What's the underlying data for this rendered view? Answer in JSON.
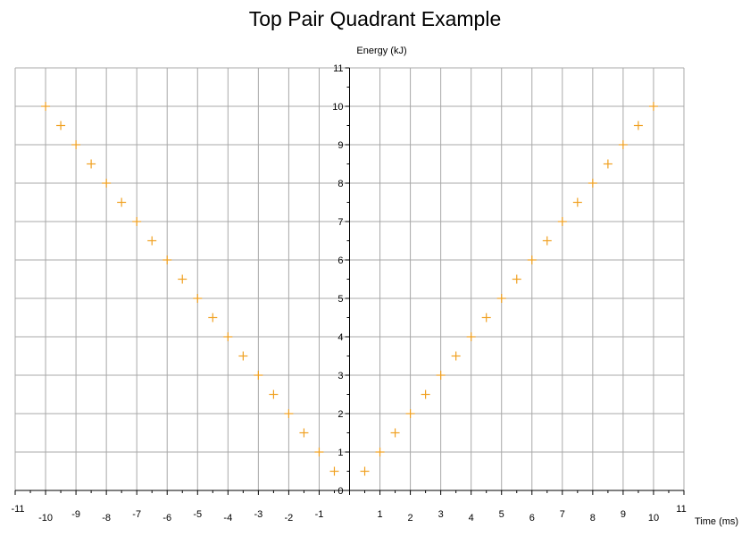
{
  "chart_data": {
    "type": "scatter",
    "title": "Top Pair Quadrant Example",
    "xlabel": "Time (ms)",
    "ylabel": "Energy (kJ)",
    "xlim": [
      -11,
      11
    ],
    "ylim": [
      0,
      11
    ],
    "x_tick_labels": [
      "-11",
      "-10",
      "-9",
      "-8",
      "-7",
      "-6",
      "-5",
      "-4",
      "-3",
      "-2",
      "-1",
      "1",
      "2",
      "3",
      "4",
      "5",
      "6",
      "7",
      "8",
      "9",
      "10",
      "11"
    ],
    "y_tick_labels": [
      "1",
      "2",
      "3",
      "4",
      "5",
      "6",
      "7",
      "8",
      "9",
      "10",
      "11"
    ],
    "y_zero_label": "0",
    "grid": true,
    "marker": "cross",
    "marker_color": "#f0a020",
    "series": [
      {
        "x": [
          -10,
          -9.5,
          -9,
          -8.5,
          -8,
          -7.5,
          -7,
          -6.5,
          -6,
          -5.5,
          -5,
          -4.5,
          -4,
          -3.5,
          -3,
          -2.5,
          -2,
          -1.5,
          -1,
          -0.5,
          0.5,
          1,
          1.5,
          2,
          2.5,
          3,
          3.5,
          4,
          4.5,
          5,
          5.5,
          6,
          6.5,
          7,
          7.5,
          8,
          8.5,
          9,
          9.5,
          10
        ],
        "y": [
          10,
          9.5,
          9,
          8.5,
          8,
          7.5,
          7,
          6.5,
          6,
          5.5,
          5,
          4.5,
          4,
          3.5,
          3,
          2.5,
          2,
          1.5,
          1,
          0.5,
          0.5,
          1,
          1.5,
          2,
          2.5,
          3,
          3.5,
          4,
          4.5,
          5,
          5.5,
          6,
          6.5,
          7,
          7.5,
          8,
          8.5,
          9,
          9.5,
          10
        ]
      }
    ]
  }
}
